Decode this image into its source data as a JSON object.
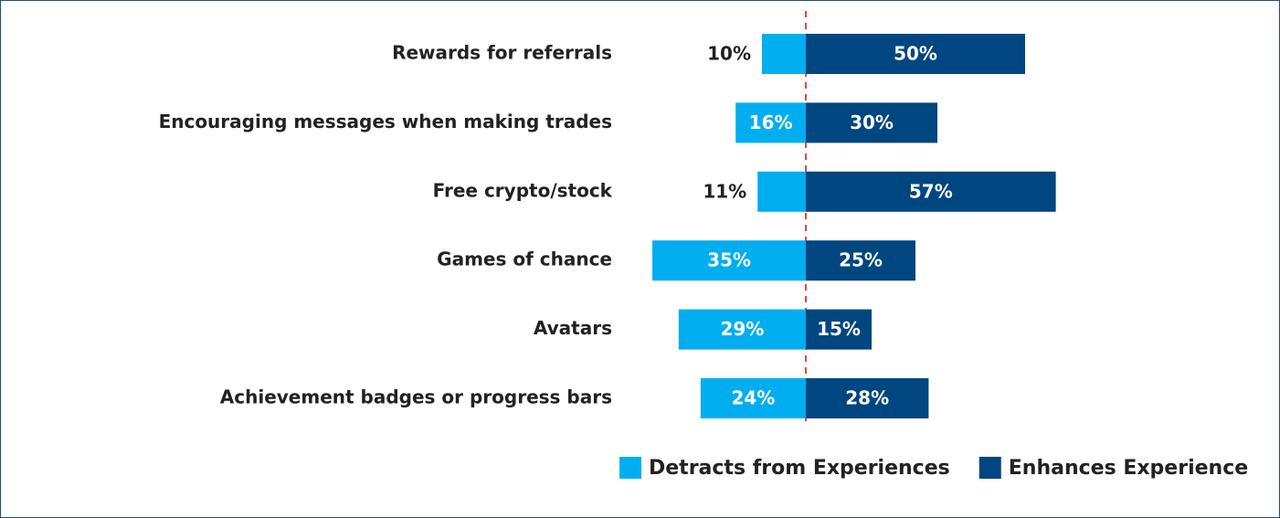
{
  "chart_data": {
    "type": "diverging_bar",
    "categories": [
      "Rewards for referrals",
      "Encouraging messages when making trades",
      "Free crypto/stock",
      "Games of chance",
      "Avatars",
      "Achievement badges or progress bars"
    ],
    "series": [
      {
        "name": "Detracts from Experiences",
        "color": "#00aeef",
        "values": [
          10,
          16,
          11,
          35,
          29,
          24
        ],
        "value_labels": [
          "10%",
          "16%",
          "11%",
          "35%",
          "29%",
          "24%"
        ]
      },
      {
        "name": "Enhances Experience",
        "color": "#004680",
        "values": [
          50,
          30,
          57,
          25,
          15,
          28
        ],
        "value_labels": [
          "50%",
          "30%",
          "57%",
          "25%",
          "15%",
          "28%"
        ]
      }
    ],
    "legend": "bottom-right"
  }
}
